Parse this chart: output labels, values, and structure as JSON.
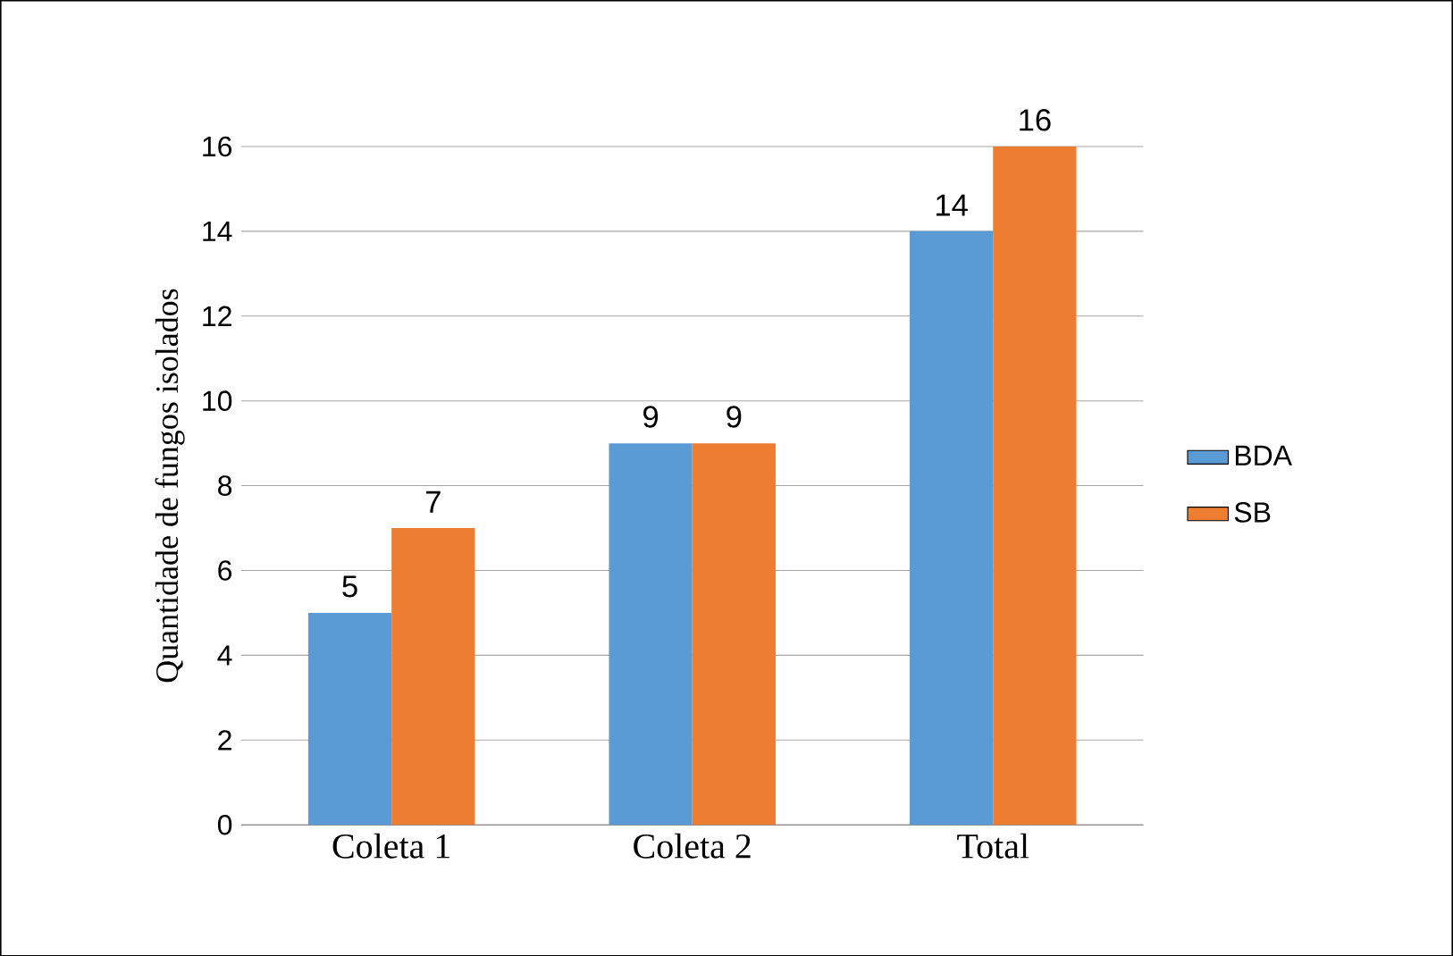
{
  "chart_data": {
    "type": "bar",
    "ylabel": "Quantidade de fungos isolados",
    "categories": [
      "Coleta 1",
      "Coleta 2",
      "Total"
    ],
    "series": [
      {
        "name": "BDA",
        "color": "#5b9bd5",
        "values": [
          5,
          9,
          14
        ]
      },
      {
        "name": "SB",
        "color": "#ed7d31",
        "values": [
          7,
          9,
          16
        ]
      }
    ],
    "ylim": [
      0,
      16
    ],
    "yticks": [
      0,
      2,
      4,
      6,
      8,
      10,
      12,
      14,
      16
    ],
    "grid": "y",
    "legend": "right",
    "data_labels": true
  }
}
